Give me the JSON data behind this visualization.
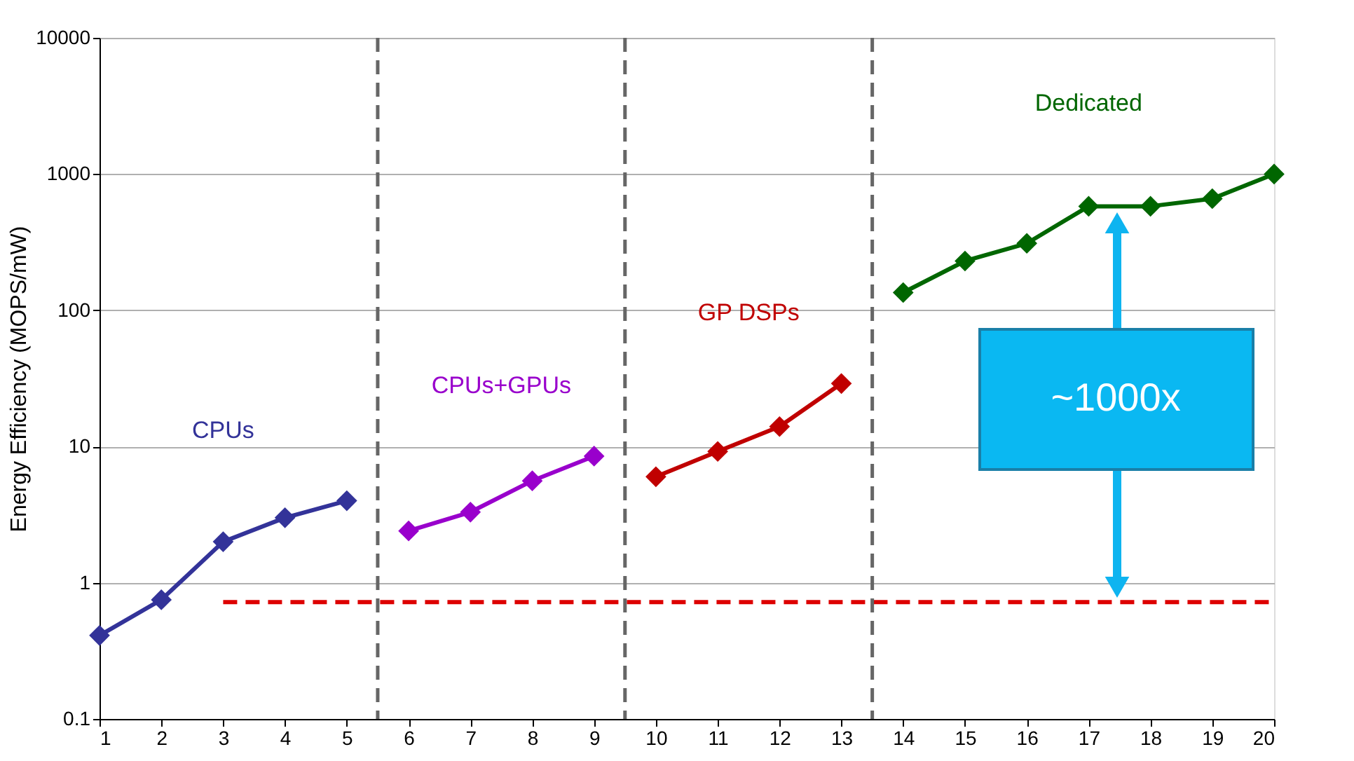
{
  "chart_data": {
    "type": "line",
    "ylabel": "Energy Efficiency (MOPS/mW)",
    "xlim": [
      1,
      20
    ],
    "xticks": [
      1,
      2,
      3,
      4,
      5,
      6,
      7,
      8,
      9,
      10,
      11,
      12,
      13,
      14,
      15,
      16,
      17,
      18,
      19,
      20
    ],
    "ylim": [
      0.1,
      10000
    ],
    "yticks": [
      0.1,
      1,
      10,
      100,
      1000,
      10000
    ],
    "log": "y",
    "grid": "y",
    "legend": false,
    "marker": "diamond",
    "line_style": "solid",
    "series": [
      {
        "name": "CPUs",
        "color": "#333399",
        "x": [
          1,
          2,
          3,
          4,
          5
        ],
        "values": [
          0.41,
          0.75,
          2.0,
          3.0,
          4.0
        ]
      },
      {
        "name": "CPUs+GPUs",
        "color": "#9900cc",
        "x": [
          6,
          7,
          8,
          9
        ],
        "values": [
          2.4,
          3.3,
          5.6,
          8.5
        ]
      },
      {
        "name": "GP DSPs",
        "color": "#c00000",
        "x": [
          10,
          11,
          12,
          13
        ],
        "values": [
          6.0,
          9.2,
          14,
          29
        ]
      },
      {
        "name": "Dedicated",
        "color": "#006600",
        "x": [
          14,
          15,
          16,
          17,
          18,
          19,
          20
        ],
        "values": [
          135,
          230,
          310,
          580,
          580,
          660,
          1000
        ]
      },
      {
        "color": "#dd0000",
        "x": [
          3,
          20
        ],
        "values": [
          0.72,
          0.72
        ],
        "marker": "none",
        "line_style": "dashed"
      }
    ],
    "ref_lines": [
      {
        "axis": "x",
        "value": 5.5,
        "color": "#666666",
        "line_style": "dashed"
      },
      {
        "axis": "x",
        "value": 9.5,
        "color": "#666666",
        "line_style": "dashed"
      },
      {
        "axis": "x",
        "value": 13.5,
        "color": "#666666",
        "line_style": "dashed"
      }
    ],
    "annotations": [
      "~1000x"
    ]
  }
}
